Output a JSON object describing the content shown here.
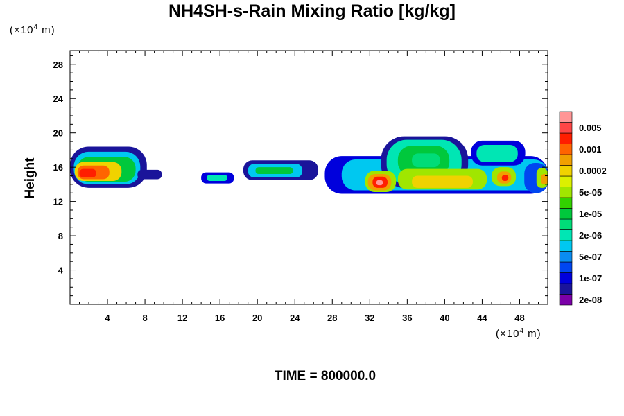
{
  "chart_data": {
    "type": "heatmap",
    "title": "NH4SH-s-Rain Mixing Ratio [kg/kg]",
    "ylabel": "Height",
    "xunit_prefix": "(×10",
    "xunit_exp": "4",
    "xunit_suffix": " m)",
    "yunit_prefix": "(×10",
    "yunit_exp": "4",
    "yunit_suffix": " m)",
    "time_label": "TIME = 800000.0",
    "xlim": [
      0,
      51
    ],
    "ylim": [
      0,
      29.6
    ],
    "x_ticks": [
      4,
      8,
      12,
      16,
      20,
      24,
      28,
      32,
      36,
      40,
      44,
      48
    ],
    "y_ticks": [
      4,
      8,
      12,
      16,
      20,
      24,
      28
    ],
    "colorbar": {
      "colors": [
        "#7b00a8",
        "#1a149a",
        "#0000dc",
        "#0046f0",
        "#0a8cf0",
        "#00c8f0",
        "#00e6b4",
        "#00dc78",
        "#00c83c",
        "#32d200",
        "#a0e600",
        "#dcf000",
        "#f0d200",
        "#f0a000",
        "#ff6400",
        "#ff1e00",
        "#ff4646",
        "#ff9696"
      ],
      "labels": [
        "2e-08",
        "1e-07",
        "5e-07",
        "2e-06",
        "1e-05",
        "5e-05",
        "0.0002",
        "0.001",
        "0.005"
      ]
    },
    "cells": [
      {
        "x0": 0,
        "x1": 8.2,
        "y0": 13.6,
        "y1": 18.4,
        "level": 1
      },
      {
        "x0": 0.4,
        "x1": 7.5,
        "y0": 14,
        "y1": 17.8,
        "level": 5
      },
      {
        "x0": 0.8,
        "x1": 7,
        "y0": 14.3,
        "y1": 17.2,
        "level": 8
      },
      {
        "x0": 0.5,
        "x1": 5.5,
        "y0": 14.4,
        "y1": 16.6,
        "level": 12
      },
      {
        "x0": 0.8,
        "x1": 4.2,
        "y0": 14.6,
        "y1": 16.2,
        "level": 14
      },
      {
        "x0": 1,
        "x1": 2.8,
        "y0": 14.8,
        "y1": 15.8,
        "level": 15
      },
      {
        "x0": 7.2,
        "x1": 9.8,
        "y0": 14.6,
        "y1": 15.7,
        "level": 1
      },
      {
        "x0": 14,
        "x1": 17.5,
        "y0": 14.1,
        "y1": 15.4,
        "level": 2
      },
      {
        "x0": 14.6,
        "x1": 16.8,
        "y0": 14.4,
        "y1": 15.1,
        "level": 6
      },
      {
        "x0": 18.5,
        "x1": 26.5,
        "y0": 14.5,
        "y1": 16.8,
        "level": 1
      },
      {
        "x0": 19,
        "x1": 24.8,
        "y0": 14.8,
        "y1": 16.4,
        "level": 5
      },
      {
        "x0": 19.8,
        "x1": 23.8,
        "y0": 15.2,
        "y1": 16,
        "level": 8
      },
      {
        "x0": 27.2,
        "x1": 51,
        "y0": 12.9,
        "y1": 17.3,
        "level": 2
      },
      {
        "x0": 29,
        "x1": 51,
        "y0": 13.3,
        "y1": 16.9,
        "level": 5
      },
      {
        "x0": 33.2,
        "x1": 42.5,
        "y0": 13.6,
        "y1": 19.6,
        "level": 1
      },
      {
        "x0": 33.8,
        "x1": 41.8,
        "y0": 14,
        "y1": 19.2,
        "level": 6
      },
      {
        "x0": 35,
        "x1": 40.5,
        "y0": 15,
        "y1": 18.5,
        "level": 8
      },
      {
        "x0": 36.5,
        "x1": 39.5,
        "y0": 16,
        "y1": 17.6,
        "level": 7
      },
      {
        "x0": 42.8,
        "x1": 48.6,
        "y0": 16.2,
        "y1": 19.1,
        "level": 2
      },
      {
        "x0": 43.4,
        "x1": 47.8,
        "y0": 16.6,
        "y1": 18.6,
        "level": 6
      },
      {
        "x0": 35,
        "x1": 44.5,
        "y0": 13.4,
        "y1": 15.8,
        "level": 10
      },
      {
        "x0": 36.5,
        "x1": 43,
        "y0": 13.6,
        "y1": 15,
        "level": 12
      },
      {
        "x0": 31.5,
        "x1": 34.8,
        "y0": 13.1,
        "y1": 15.6,
        "level": 10
      },
      {
        "x0": 31.8,
        "x1": 34.3,
        "y0": 13.3,
        "y1": 15.2,
        "level": 13
      },
      {
        "x0": 32.3,
        "x1": 33.9,
        "y0": 13.6,
        "y1": 14.9,
        "level": 15
      },
      {
        "x0": 32.7,
        "x1": 33.4,
        "y0": 13.9,
        "y1": 14.5,
        "level": 17
      },
      {
        "x0": 45,
        "x1": 47.6,
        "y0": 13.8,
        "y1": 16,
        "level": 10
      },
      {
        "x0": 45.6,
        "x1": 47.1,
        "y0": 14.1,
        "y1": 15.5,
        "level": 13
      },
      {
        "x0": 46.1,
        "x1": 46.8,
        "y0": 14.4,
        "y1": 15.1,
        "level": 15
      },
      {
        "x0": 48.5,
        "x1": 51,
        "y0": 13,
        "y1": 16.5,
        "level": 3
      },
      {
        "x0": 49.8,
        "x1": 51,
        "y0": 13.6,
        "y1": 15.9,
        "level": 10
      },
      {
        "x0": 50.3,
        "x1": 51,
        "y0": 14,
        "y1": 15.2,
        "level": 13
      }
    ]
  }
}
